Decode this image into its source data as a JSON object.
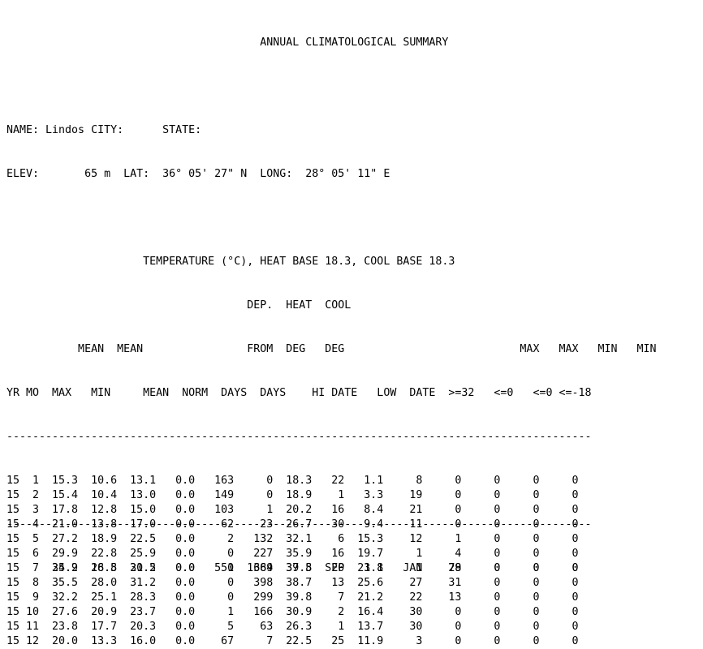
{
  "title": "ANNUAL CLIMATOLOGICAL SUMMARY",
  "station": {
    "name_label": "NAME:",
    "name": "Lindos",
    "city_label": "CITY:",
    "city": "",
    "state_label": "STATE:",
    "state": "",
    "elev_label": "ELEV:",
    "elev": "65 m",
    "lat_label": "LAT:",
    "lat": "36° 05' 27\" N",
    "long_label": "LONG:",
    "long": "28° 05' 11\" E"
  },
  "subtitle": "TEMPERATURE (°C), HEAT BASE 18.3, COOL BASE 18.3",
  "header_lines": [
    "                                    DEP.  HEAT  COOL",
    "         MEAN  MEAN                 FROM  DEG   DEG                          MAX   MAX   MIN   MIN",
    "YR MO   MAX   MIN    MEAN          NORM  DAYS  DAYS   HI   DATE   LOW  DATE  >=32  <=0   <=0   <=-18"
  ],
  "columns": [
    "YR",
    "MO",
    "MEAN MAX",
    "MEAN MIN",
    "MEAN",
    "DEP. FROM NORM",
    "HEAT DEG DAYS",
    "COOL DEG DAYS",
    "HI",
    "DATE",
    "LOW",
    "DATE",
    "MAX >=32",
    "MAX <=0",
    "MIN <=0",
    "MIN <=-18"
  ],
  "rows": [
    [
      "15",
      "1",
      "15.3",
      "10.6",
      "13.1",
      "0.0",
      "163",
      "0",
      "18.3",
      "22",
      "1.1",
      "8",
      "0",
      "0",
      "0",
      "0"
    ],
    [
      "15",
      "2",
      "15.4",
      "10.4",
      "13.0",
      "0.0",
      "149",
      "0",
      "18.9",
      "1",
      "3.3",
      "19",
      "0",
      "0",
      "0",
      "0"
    ],
    [
      "15",
      "3",
      "17.8",
      "12.8",
      "15.0",
      "0.0",
      "103",
      "1",
      "20.2",
      "16",
      "8.4",
      "21",
      "0",
      "0",
      "0",
      "0"
    ],
    [
      "15",
      "4",
      "21.0",
      "13.8",
      "17.0",
      "0.0",
      "62",
      "23",
      "26.7",
      "30",
      "9.4",
      "11",
      "0",
      "0",
      "0",
      "0"
    ],
    [
      "15",
      "5",
      "27.2",
      "18.9",
      "22.5",
      "0.0",
      "2",
      "132",
      "32.1",
      "6",
      "15.3",
      "12",
      "1",
      "0",
      "0",
      "0"
    ],
    [
      "15",
      "6",
      "29.9",
      "22.8",
      "25.9",
      "0.0",
      "0",
      "227",
      "35.9",
      "16",
      "19.7",
      "1",
      "4",
      "0",
      "0",
      "0"
    ],
    [
      "15",
      "7",
      "34.9",
      "26.8",
      "30.2",
      "0.0",
      "0",
      "369",
      "37.5",
      "20",
      "23.8",
      "1",
      "29",
      "0",
      "0",
      "0"
    ],
    [
      "15",
      "8",
      "35.5",
      "28.0",
      "31.2",
      "0.0",
      "0",
      "398",
      "38.7",
      "13",
      "25.6",
      "27",
      "31",
      "0",
      "0",
      "0"
    ],
    [
      "15",
      "9",
      "32.2",
      "25.1",
      "28.3",
      "0.0",
      "0",
      "299",
      "39.8",
      "7",
      "21.2",
      "22",
      "13",
      "0",
      "0",
      "0"
    ],
    [
      "15",
      "10",
      "27.6",
      "20.9",
      "23.7",
      "0.0",
      "1",
      "166",
      "30.9",
      "2",
      "16.4",
      "30",
      "0",
      "0",
      "0",
      "0"
    ],
    [
      "15",
      "11",
      "23.8",
      "17.7",
      "20.3",
      "0.0",
      "5",
      "63",
      "26.3",
      "1",
      "13.7",
      "30",
      "0",
      "0",
      "0",
      "0"
    ],
    [
      "15",
      "12",
      "20.0",
      "13.3",
      "16.0",
      "0.0",
      "67",
      "7",
      "22.5",
      "25",
      "11.9",
      "3",
      "0",
      "0",
      "0",
      "0"
    ]
  ],
  "totals": [
    "",
    "",
    "25.2",
    "18.5",
    "21.5",
    "0.0",
    "551",
    "1684",
    "39.8",
    "SEP",
    "1.1",
    "JAN",
    "78",
    "0",
    "0",
    "0"
  ]
}
